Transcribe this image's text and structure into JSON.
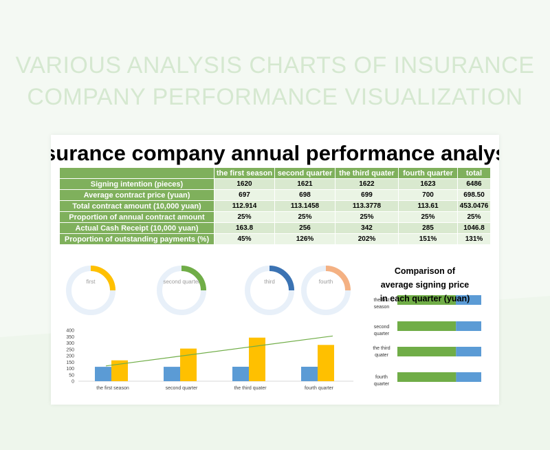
{
  "page": {
    "title_line1": "VARIOUS ANALYSIS CHARTS OF INSURANCE",
    "title_line2": "COMPANY PERFORMANCE VISUALIZATION"
  },
  "sheet": {
    "title": "Insurance company annual performance analysis",
    "columns": [
      "",
      "the first season",
      "second quarter",
      "the third quater",
      "fourth quarter",
      "total"
    ],
    "rows": [
      {
        "label": "Signing intention (pieces)",
        "values": [
          "1620",
          "1621",
          "1622",
          "1623",
          "6486"
        ]
      },
      {
        "label": "Average contract price (yuan)",
        "values": [
          "697",
          "698",
          "699",
          "700",
          "698.50"
        ]
      },
      {
        "label": "Total contract amount (10,000 yuan)",
        "values": [
          "112.914",
          "113.1458",
          "113.3778",
          "113.61",
          "453.0476"
        ]
      },
      {
        "label": "Proportion of annual contract amount",
        "values": [
          "25%",
          "25%",
          "25%",
          "25%",
          "25%"
        ]
      },
      {
        "label": "Actual Cash Receipt (10,000 yuan)",
        "values": [
          "163.8",
          "256",
          "342",
          "285",
          "1046.8"
        ]
      },
      {
        "label": "Proportion of outstanding payments (%)",
        "values": [
          "45%",
          "126%",
          "202%",
          "151%",
          "131%"
        ]
      }
    ]
  },
  "colors": {
    "green": "#7fb05c",
    "bar_blue": "#5b9bd5",
    "bar_orange": "#ffc000",
    "trend_green": "#70ad47",
    "donut_track": "#e8f0f9"
  },
  "chart_data": [
    {
      "type": "pie",
      "title": "",
      "donuts": [
        {
          "label": "first",
          "value": 25,
          "color": "#ffc000"
        },
        {
          "label": "second quarter",
          "value": 25,
          "color": "#70ad47"
        },
        {
          "label": "third",
          "value": 25,
          "color": "#3b73b3"
        },
        {
          "label": "fourth",
          "value": 25,
          "color": "#f4b183"
        }
      ]
    },
    {
      "type": "bar",
      "title": "",
      "categories": [
        "the first season",
        "second quarter",
        "the third quater",
        "fourth quarter"
      ],
      "series": [
        {
          "values": [
            112.914,
            113.1458,
            113.3778,
            113.61
          ],
          "color": "#5b9bd5"
        },
        {
          "values": [
            163.8,
            256,
            342,
            285
          ],
          "color": "#ffc000"
        }
      ],
      "trendline": {
        "from": 120,
        "to": 355,
        "color": "#70ad47"
      },
      "ylim": [
        0,
        400
      ],
      "yticks": [
        "400",
        "350",
        "300",
        "250",
        "200",
        "150",
        "100",
        "50",
        "0"
      ],
      "grid": false
    },
    {
      "type": "bar",
      "orientation": "horizontal",
      "title": "Comparison of average signing price in each quarter (yuan)",
      "categories": [
        "the first season",
        "second quarter",
        "the third quater",
        "fourth quarter"
      ],
      "series": [
        {
          "values": [
            697,
            698,
            699,
            700
          ],
          "color": "#70ad47"
        },
        {
          "values": [
            303,
            302,
            301,
            300
          ],
          "color": "#5b9bd5"
        }
      ],
      "xlim": [
        0,
        1000
      ]
    }
  ]
}
